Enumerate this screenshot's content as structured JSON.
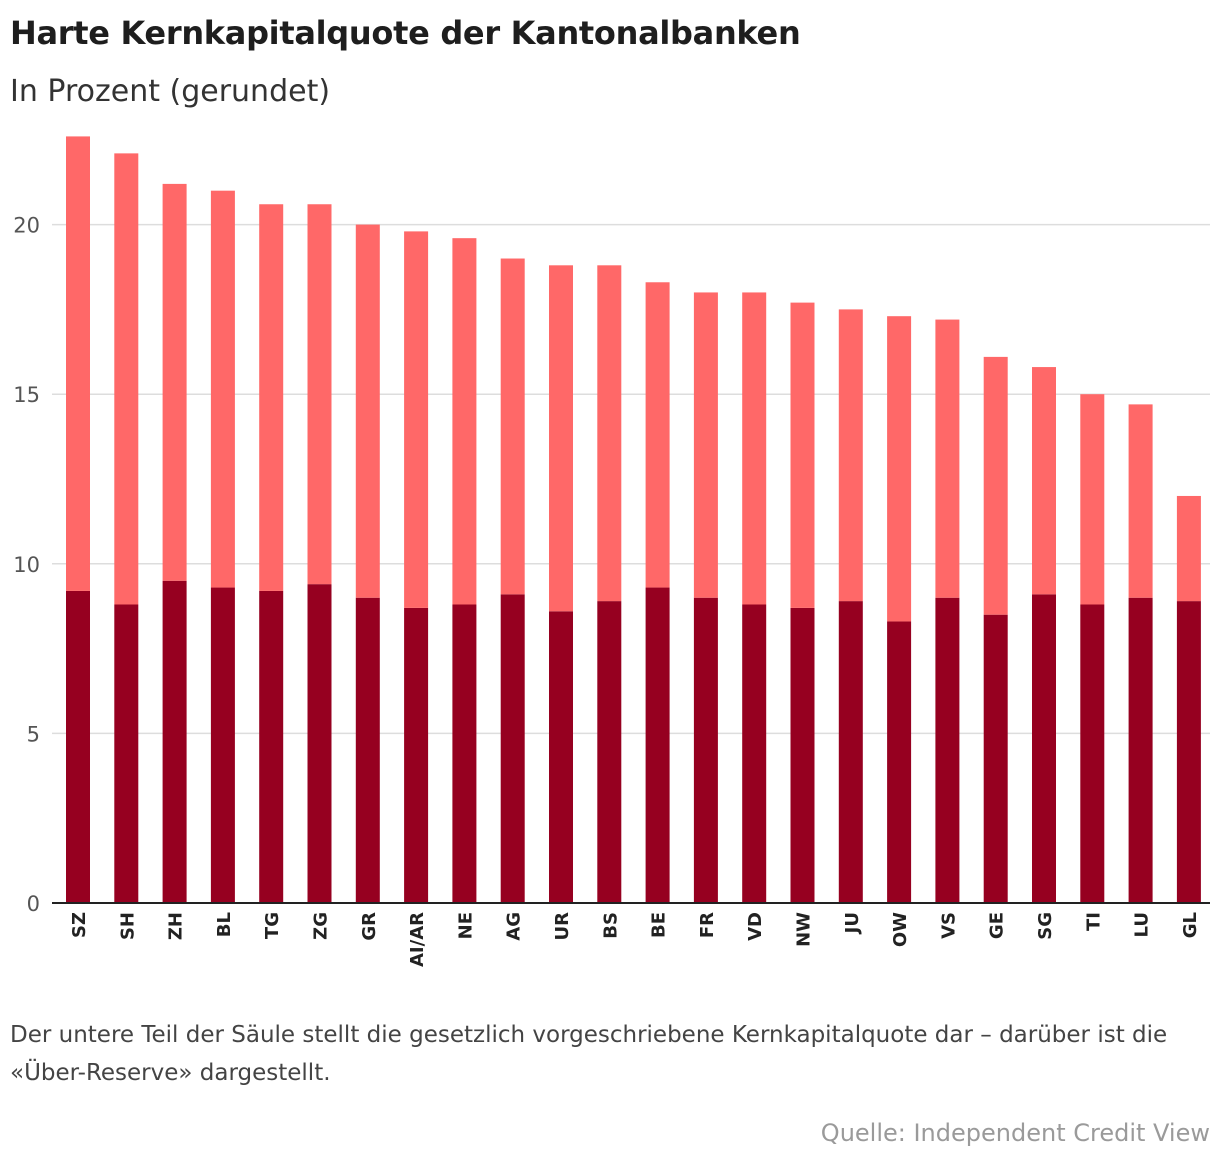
{
  "title": "Harte Kernkapitalquote der Kantonalbanken",
  "subtitle": "In Prozent (gerundet)",
  "note": "Der untere Teil der Säule stellt die gesetzlich vorgeschriebene Kernkapitalquote dar – darüber ist die «Über-Reserve» dargestellt.",
  "source": "Quelle: Independent Credit View",
  "colors": {
    "required": "#960020",
    "reserve": "#ff6868",
    "grid": "#dddddd",
    "axis": "#222222"
  },
  "chart_data": {
    "type": "bar",
    "stacked": true,
    "categories": [
      "SZ",
      "SH",
      "ZH",
      "BL",
      "TG",
      "ZG",
      "GR",
      "AI/AR",
      "NE",
      "AG",
      "UR",
      "BS",
      "BE",
      "FR",
      "VD",
      "NW",
      "JU",
      "OW",
      "VS",
      "GE",
      "SG",
      "TI",
      "LU",
      "GL"
    ],
    "totals": [
      22.6,
      22.1,
      21.2,
      21.0,
      20.6,
      20.6,
      20.0,
      19.8,
      19.6,
      19.0,
      18.8,
      18.8,
      18.3,
      18.0,
      18.0,
      17.7,
      17.5,
      17.3,
      17.2,
      16.1,
      15.8,
      15.0,
      14.7,
      12.0
    ],
    "series": [
      {
        "values": [
          9.2,
          8.8,
          9.5,
          9.3,
          9.2,
          9.4,
          9.0,
          8.7,
          8.8,
          9.1,
          8.6,
          8.9,
          9.3,
          9.0,
          8.8,
          8.7,
          8.9,
          8.3,
          9.0,
          8.5,
          9.1,
          8.8,
          9.0,
          8.9
        ]
      },
      {
        "values": [
          13.4,
          13.3,
          11.7,
          11.7,
          11.4,
          11.2,
          11.0,
          11.1,
          10.8,
          9.9,
          10.2,
          9.9,
          9.0,
          9.0,
          9.2,
          9.0,
          8.6,
          9.0,
          8.2,
          7.6,
          6.7,
          6.2,
          5.7,
          3.1
        ]
      }
    ],
    "ylim": [
      0,
      22.6
    ],
    "yticks": [
      0,
      5,
      10,
      15,
      20
    ],
    "grid": true,
    "legend": "none"
  }
}
